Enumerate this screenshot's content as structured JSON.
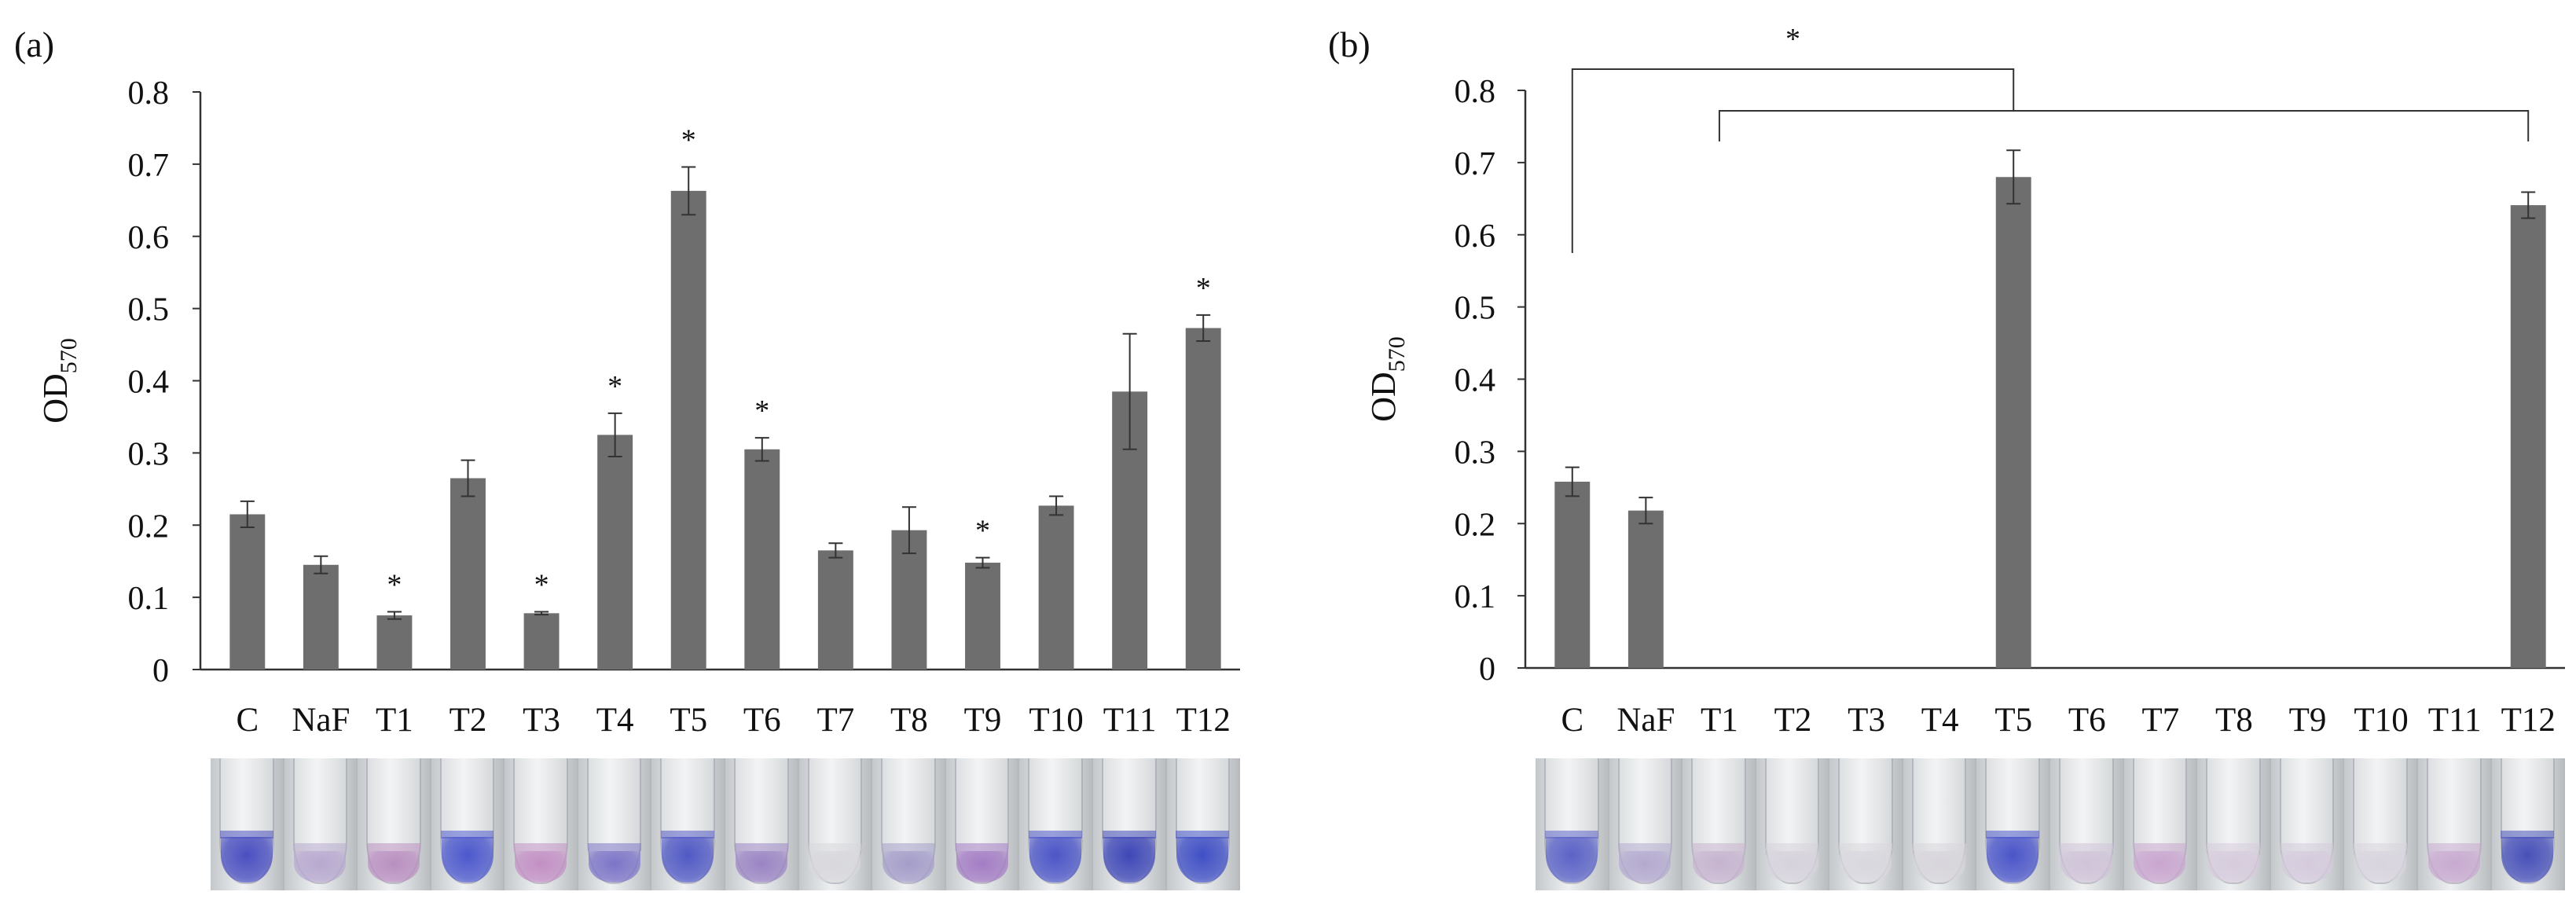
{
  "chart_data": [
    {
      "type": "bar",
      "panel_label": "(a)",
      "ylabel_main": "OD",
      "ylabel_sub": "570",
      "xlabel": "",
      "ylim": [
        0,
        0.8
      ],
      "yticks": [
        "0",
        "0.1",
        "0.2",
        "0.3",
        "0.4",
        "0.5",
        "0.6",
        "0.7",
        "0.8"
      ],
      "categories": [
        "C",
        "NaF",
        "T1",
        "T2",
        "T3",
        "T4",
        "T5",
        "T6",
        "T7",
        "T8",
        "T9",
        "T10",
        "T11",
        "T12"
      ],
      "values": [
        0.215,
        0.145,
        0.075,
        0.265,
        0.078,
        0.325,
        0.663,
        0.305,
        0.165,
        0.193,
        0.148,
        0.227,
        0.385,
        0.473
      ],
      "errors": [
        0.018,
        0.012,
        0.005,
        0.025,
        0.002,
        0.03,
        0.033,
        0.016,
        0.01,
        0.032,
        0.007,
        0.013,
        0.08,
        0.018
      ],
      "significance": [
        "",
        "",
        "*",
        "",
        "*",
        "*",
        "*",
        "*",
        "",
        "",
        "*",
        "",
        "",
        "*"
      ],
      "bar_color": "#6e6e6e",
      "tube_stains": [
        "#4a4fc0",
        "#b7a8cf",
        "#b98fc0",
        "#4c58cc",
        "#c28fc4",
        "#7c74c7",
        "#5059c4",
        "#9a84c3",
        "#d8d8dc",
        "#a49dc9",
        "#a37cc4",
        "#4b55c6",
        "#3e47b6",
        "#3f4fc4"
      ]
    },
    {
      "type": "bar",
      "panel_label": "(b)",
      "ylabel_main": "OD",
      "ylabel_sub": "570",
      "xlabel": "",
      "ylim": [
        0,
        0.8
      ],
      "yticks": [
        "0",
        "0.1",
        "0.2",
        "0.3",
        "0.4",
        "0.5",
        "0.6",
        "0.7",
        "0.8"
      ],
      "categories": [
        "C",
        "NaF",
        "T1",
        "T2",
        "T3",
        "T4",
        "T5",
        "T6",
        "T7",
        "T8",
        "T9",
        "T10",
        "T11",
        "T12"
      ],
      "values": [
        0.258,
        0.218,
        0,
        0,
        0,
        0,
        0.68,
        0,
        0,
        0,
        0,
        0,
        0,
        0.641
      ],
      "errors": [
        0.02,
        0.018,
        0,
        0,
        0,
        0,
        0.037,
        0,
        0,
        0,
        0,
        0,
        0,
        0.018
      ],
      "bracket_star": "*",
      "bar_color": "#6e6e6e",
      "tube_stains": [
        "#5a62c6",
        "#b3a9cf",
        "#c6b3cf",
        "#d6d2dc",
        "#d9d7de",
        "#d7d5db",
        "#4a55c8",
        "#cfc3d8",
        "#c9a5cf",
        "#d6cbdc",
        "#d4cadc",
        "#d8d4de",
        "#c8a9d0",
        "#4750b8"
      ]
    }
  ]
}
